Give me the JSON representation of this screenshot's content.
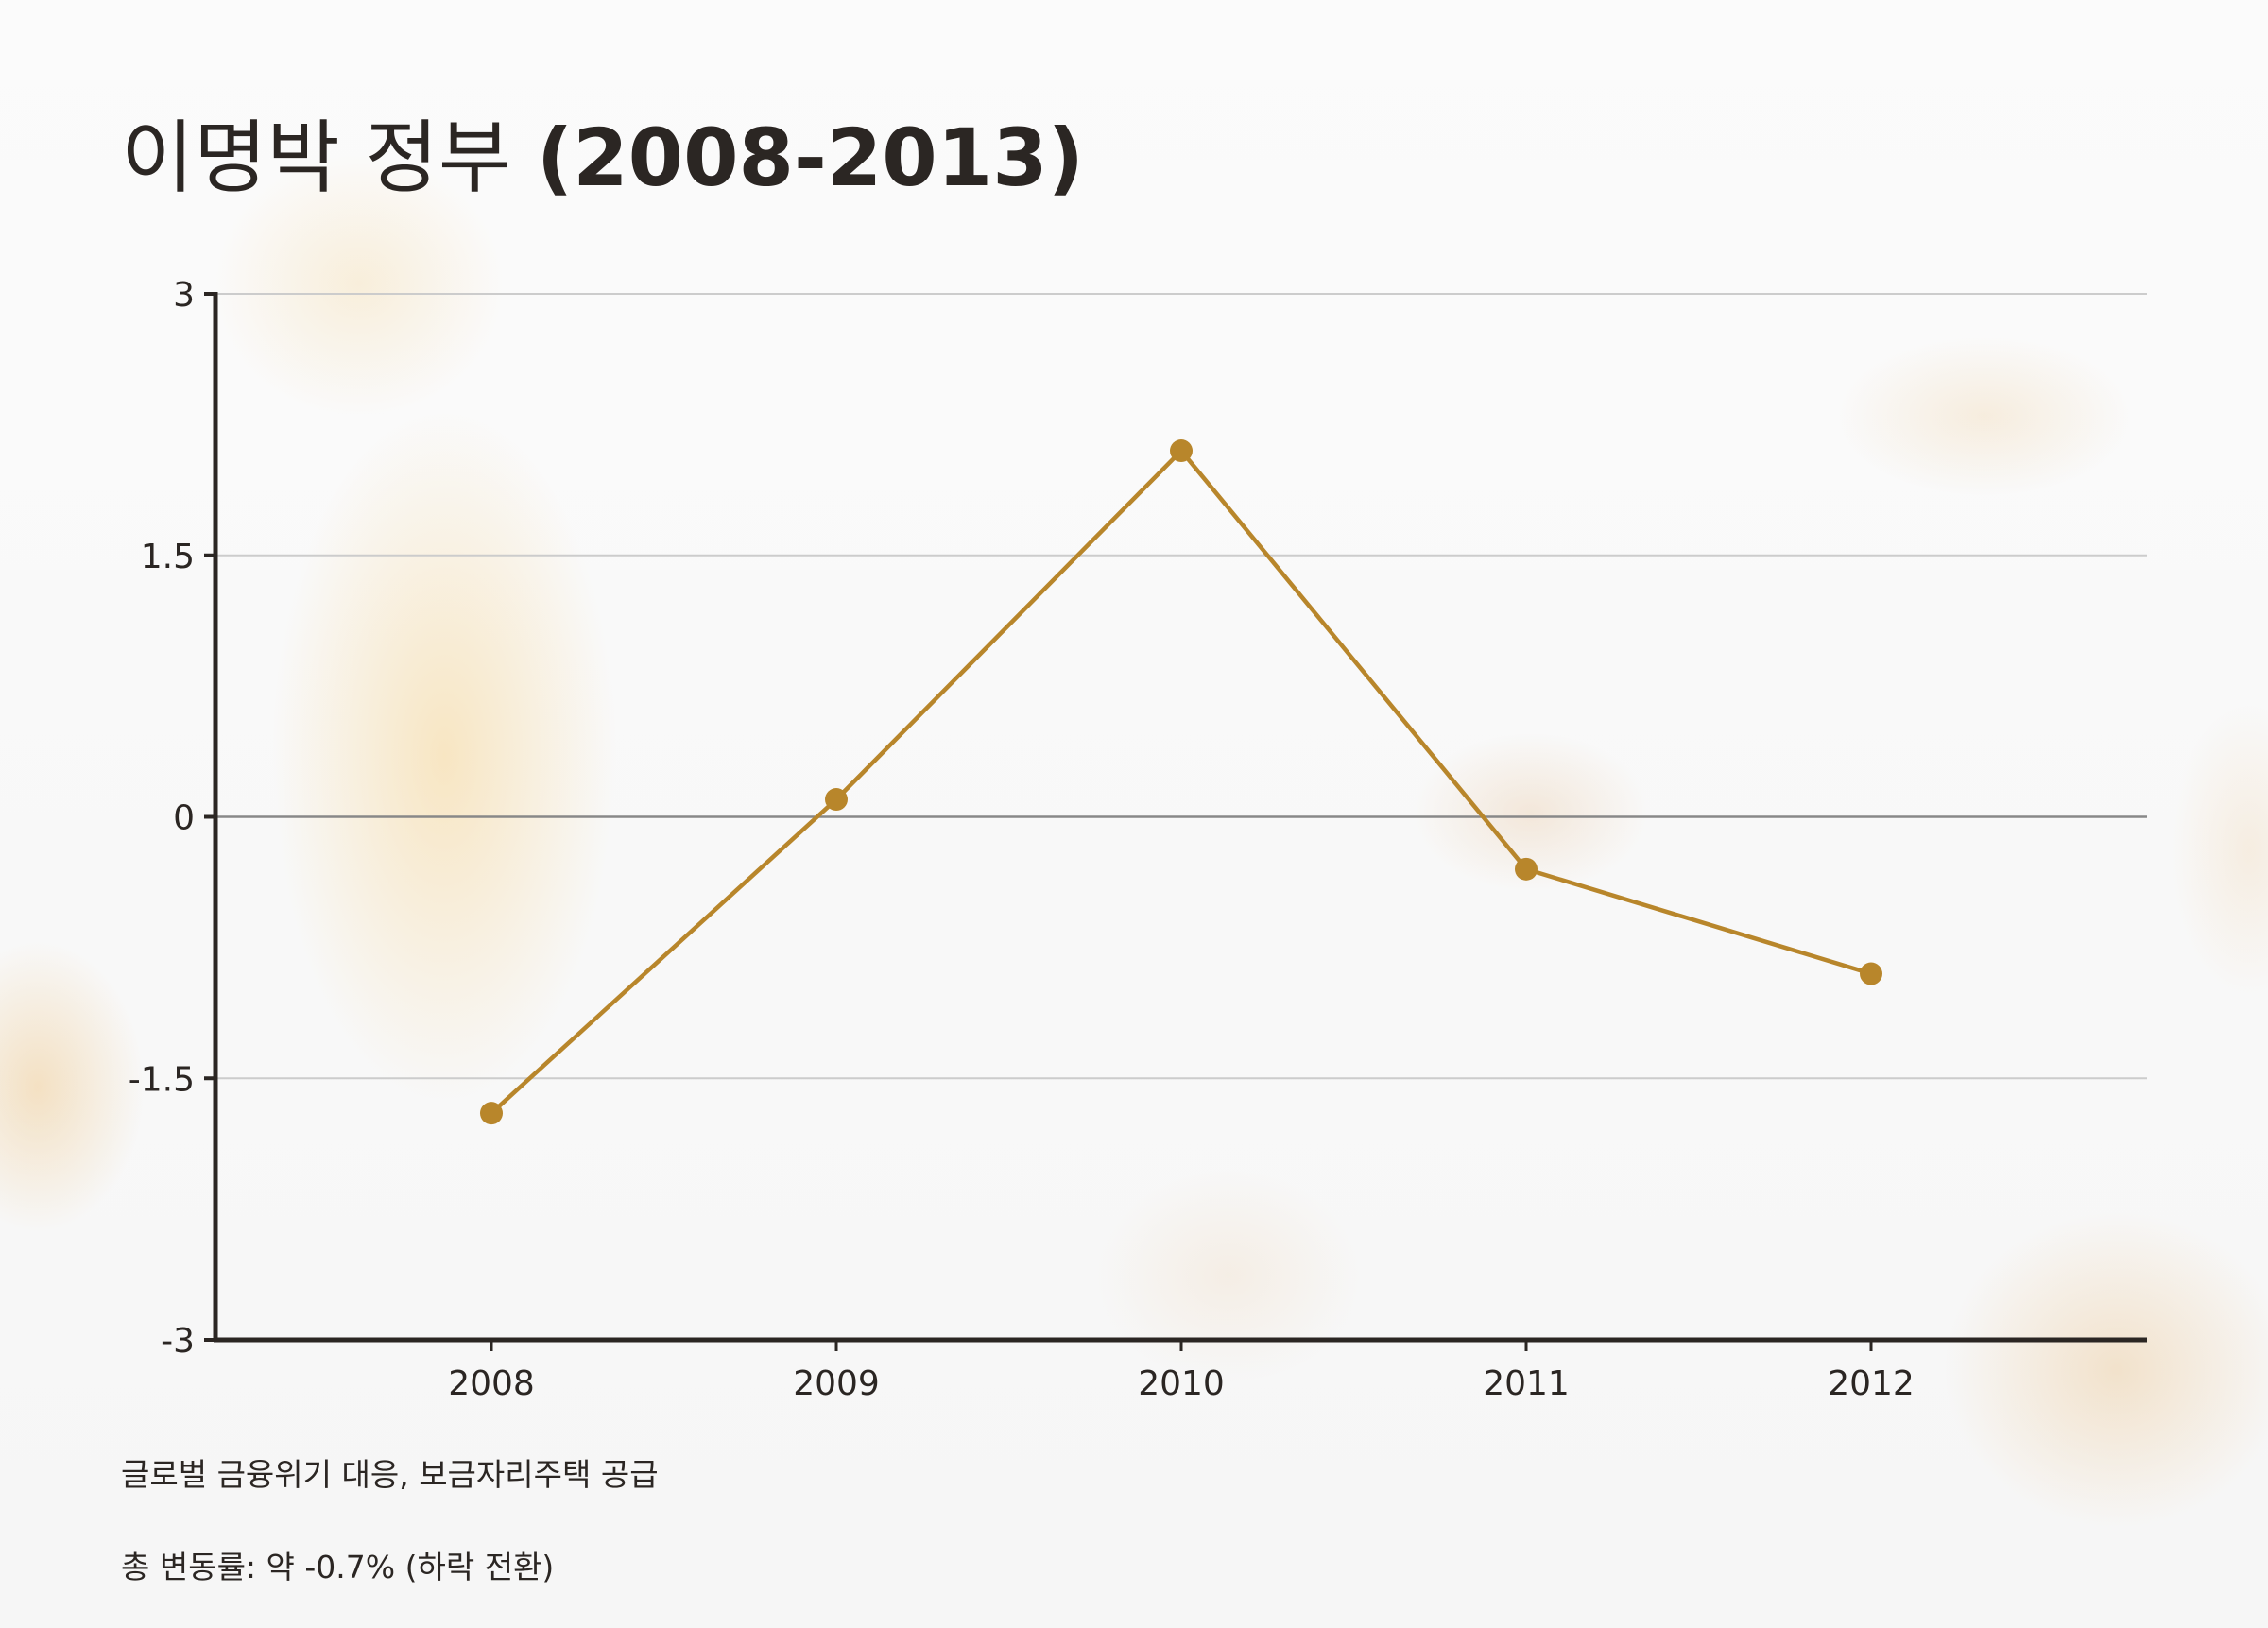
{
  "title": {
    "main": "이명박 정부",
    "years": "(2008-2013)"
  },
  "notes": {
    "policy": "글로벌 금융위기 대응, 보금자리주택 공급",
    "total_change": "총 변동률: 약 -0.7% (하락 전환)"
  },
  "colors": {
    "line": "#b8862b",
    "axis": "#2b2623",
    "grid": "#cccccc",
    "zero_line": "#888888",
    "text": "#2b2623"
  },
  "chart_data": {
    "type": "line",
    "title": "이명박 정부 (2008-2013)",
    "xlabel": "",
    "ylabel": "",
    "categories": [
      "2008",
      "2009",
      "2010",
      "2011",
      "2012"
    ],
    "series": [
      {
        "values": [
          -1.7,
          0.1,
          2.1,
          -0.3,
          -0.9
        ]
      }
    ],
    "ylim": [
      -3,
      3
    ],
    "yticks": [
      "3",
      "1.5",
      "0",
      "-1.5",
      "-3"
    ],
    "grid": true,
    "legend": "none"
  }
}
